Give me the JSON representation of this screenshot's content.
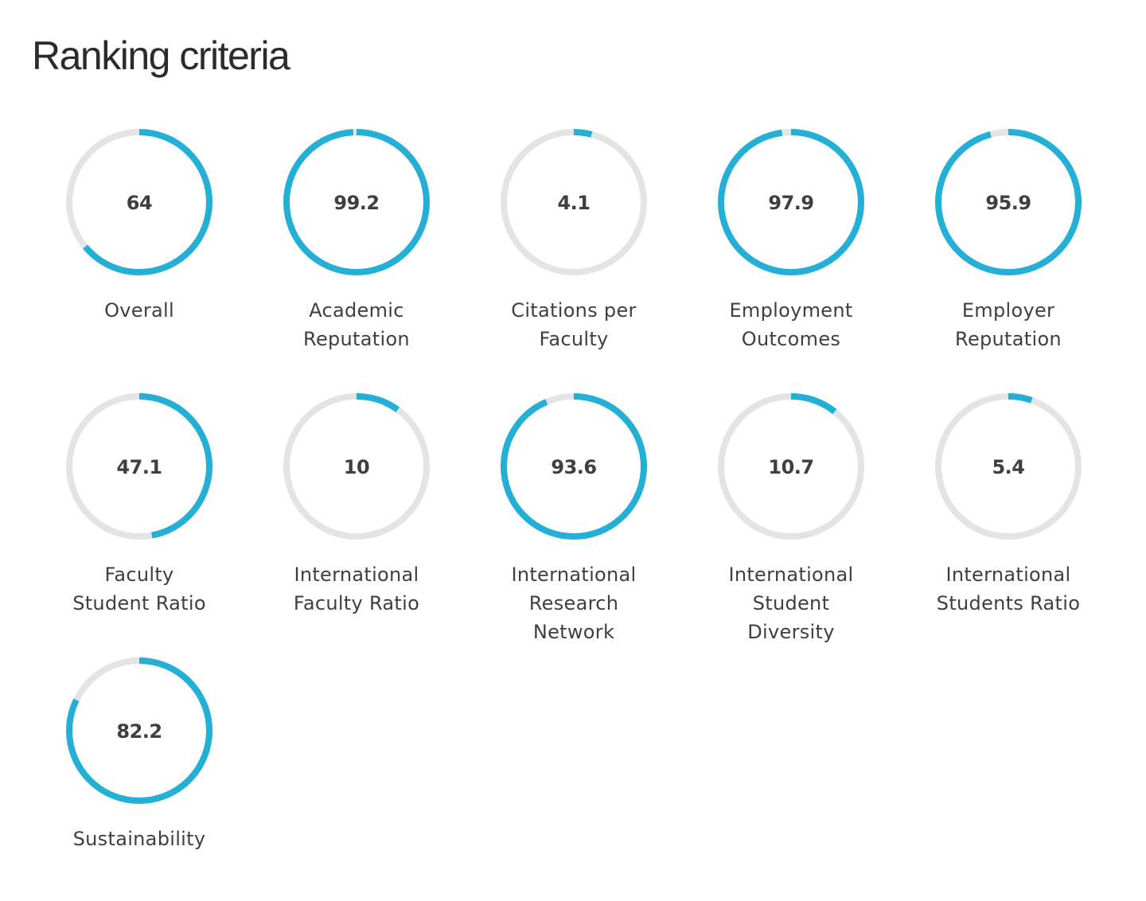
{
  "title": "Ranking criteria",
  "colors": {
    "accent": "#24afd6",
    "track": "#e4e4e6",
    "text": "#3f3f3f"
  },
  "chart_data": {
    "type": "radial-gauge",
    "max": 100,
    "items": [
      {
        "name": "Overall",
        "label_lines": [
          "Overall"
        ],
        "value": 64,
        "display": "64"
      },
      {
        "name": "Academic Reputation",
        "label_lines": [
          "Academic",
          "Reputation"
        ],
        "value": 99.2,
        "display": "99.2"
      },
      {
        "name": "Citations per Faculty",
        "label_lines": [
          "Citations per",
          "Faculty"
        ],
        "value": 4.1,
        "display": "4.1"
      },
      {
        "name": "Employment Outcomes",
        "label_lines": [
          "Employment",
          "Outcomes"
        ],
        "value": 97.9,
        "display": "97.9"
      },
      {
        "name": "Employer Reputation",
        "label_lines": [
          "Employer",
          "Reputation"
        ],
        "value": 95.9,
        "display": "95.9"
      },
      {
        "name": "Faculty Student Ratio",
        "label_lines": [
          "Faculty",
          "Student Ratio"
        ],
        "value": 47.1,
        "display": "47.1"
      },
      {
        "name": "International Faculty Ratio",
        "label_lines": [
          "International",
          "Faculty Ratio"
        ],
        "value": 10,
        "display": "10"
      },
      {
        "name": "International Research Network",
        "label_lines": [
          "International",
          "Research",
          "Network"
        ],
        "value": 93.6,
        "display": "93.6"
      },
      {
        "name": "International Student Diversity",
        "label_lines": [
          "International",
          "Student",
          "Diversity"
        ],
        "value": 10.7,
        "display": "10.7"
      },
      {
        "name": "International Students Ratio",
        "label_lines": [
          "International",
          "Students Ratio"
        ],
        "value": 5.4,
        "display": "5.4"
      },
      {
        "name": "Sustainability",
        "label_lines": [
          "Sustainability"
        ],
        "value": 82.2,
        "display": "82.2"
      }
    ]
  }
}
